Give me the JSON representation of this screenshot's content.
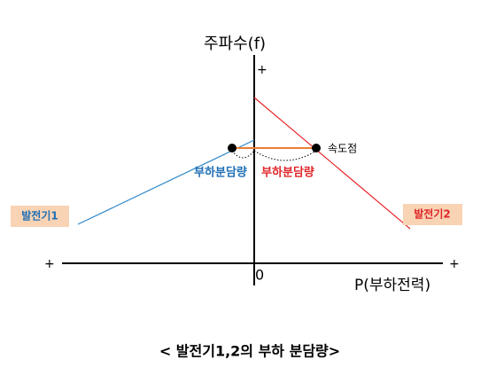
{
  "axes": {
    "y_label": "주파수(f)",
    "y_plus": "+",
    "x_plus_left": "+",
    "x_plus_right": "+",
    "origin": "0",
    "x_label": "P(부하전력)"
  },
  "annotations": {
    "speed_point": "속도점",
    "share_1": "부하분담량",
    "share_2": "부하분담량"
  },
  "generators": [
    {
      "label": "발전기1"
    },
    {
      "label": "발전기2"
    }
  ],
  "caption": "< 발전기1,2의 부하 분담량>"
}
